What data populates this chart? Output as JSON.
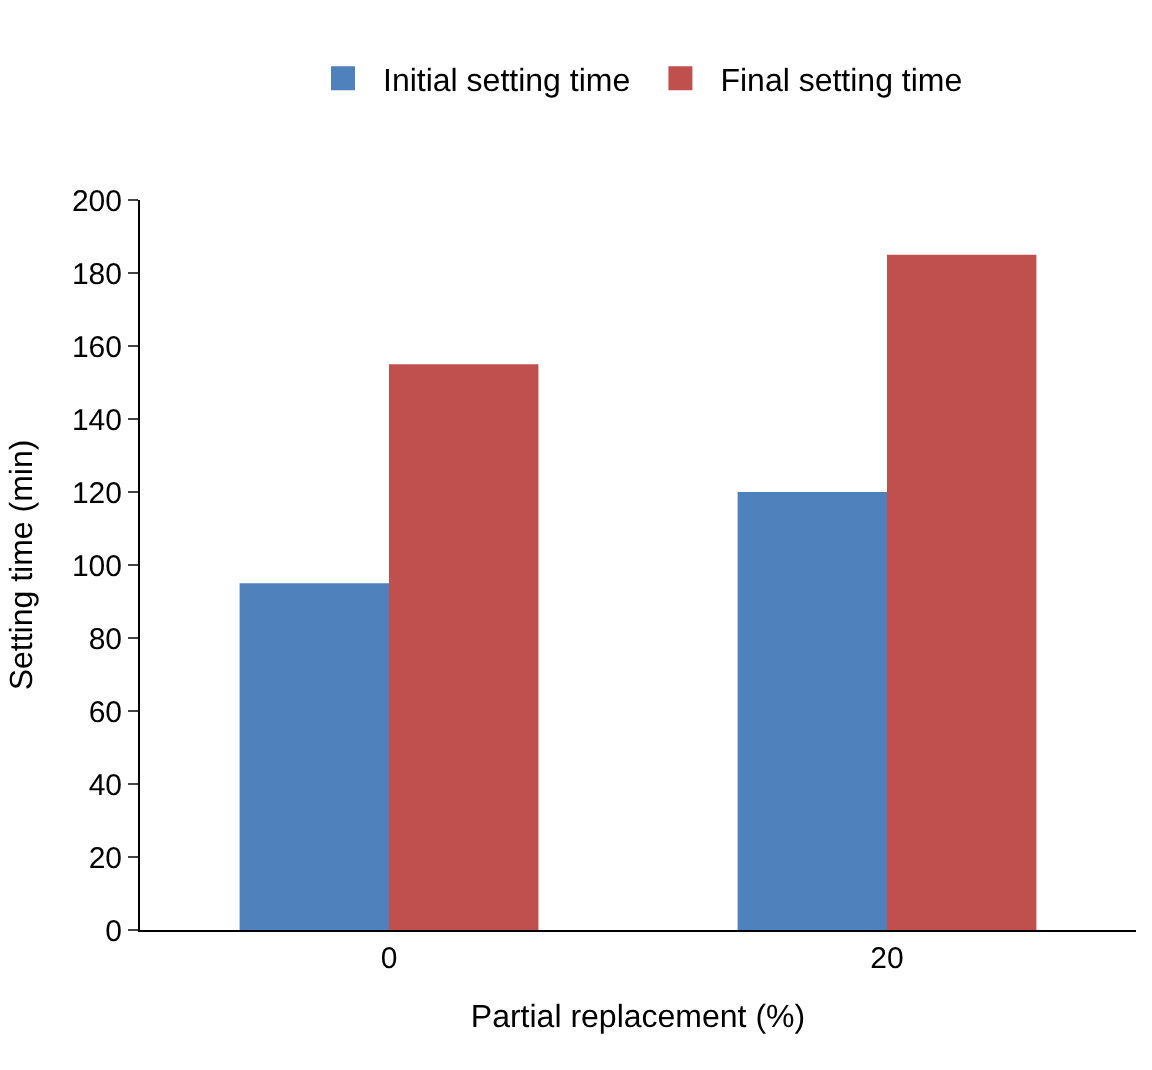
{
  "chart_data": {
    "type": "bar",
    "categories": [
      "0",
      "20"
    ],
    "series": [
      {
        "name": "Initial setting time",
        "color": "#4f81bd",
        "values": [
          95,
          120
        ]
      },
      {
        "name": "Final setting time",
        "color": "#c0504d",
        "values": [
          155,
          185
        ]
      }
    ],
    "xlabel": "Partial replacement (%)",
    "ylabel": "Setting time (min)",
    "ylim": [
      0,
      200
    ],
    "yticks": [
      0,
      20,
      40,
      60,
      80,
      100,
      120,
      140,
      160,
      180,
      200
    ],
    "legend": "top"
  }
}
